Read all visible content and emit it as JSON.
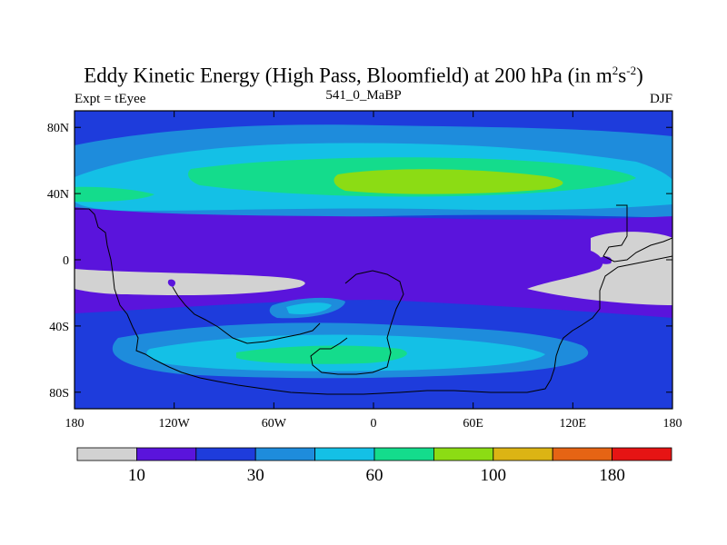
{
  "title": {
    "main": "Eddy Kinetic Energy (High Pass, Bloomfield) at 200 hPa (in m",
    "sup1": "2",
    "mid": "s",
    "sup2": "-2",
    "end": ")"
  },
  "subtitle": {
    "left": "Expt = tEyee",
    "center": "541_0_MaBP",
    "right": "DJF"
  },
  "axes": {
    "y_ticks": [
      {
        "label": "80N",
        "lat": 80
      },
      {
        "label": "40N",
        "lat": 40
      },
      {
        "label": "0",
        "lat": 0
      },
      {
        "label": "40S",
        "lat": -40
      },
      {
        "label": "80S",
        "lat": -80
      }
    ],
    "x_ticks": [
      {
        "label": "180",
        "lon": -180
      },
      {
        "label": "120W",
        "lon": -120
      },
      {
        "label": "60W",
        "lon": -60
      },
      {
        "label": "0",
        "lon": 0
      },
      {
        "label": "60E",
        "lon": 60
      },
      {
        "label": "120E",
        "lon": 120
      },
      {
        "label": "180",
        "lon": 180
      }
    ],
    "lon_range": [
      -180,
      180
    ],
    "lat_range": [
      -90,
      90
    ]
  },
  "colorbar": {
    "colors": [
      "#d2d2d2",
      "#5a14dc",
      "#1e3cdc",
      "#1e8cdc",
      "#14c0e6",
      "#14dc8c",
      "#8cdc14",
      "#dcb414",
      "#e66414",
      "#e61414"
    ],
    "labels": [
      {
        "text": "10",
        "after_box": 1
      },
      {
        "text": "30",
        "after_box": 3
      },
      {
        "text": "60",
        "after_box": 5
      },
      {
        "text": "100",
        "after_box": 7
      },
      {
        "text": "180",
        "after_box": 9
      }
    ]
  }
}
